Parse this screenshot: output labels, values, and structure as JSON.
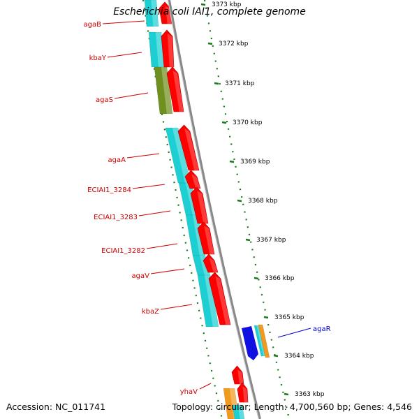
{
  "header": {
    "title": "Escherichia coli IAI1, complete genome"
  },
  "footer": {
    "accession": "Accession: NC_011741",
    "summary": "Topology: circular; Length: 4,700,560 bp; Genes: 4,546"
  },
  "colors": {
    "backbone": "#888888",
    "tick": "#1a7a1a",
    "gene_label": "#cc0000",
    "gene_label_highlight": "#0000cc",
    "arrow_red": "#ff0000",
    "cyan": "#1ccfd2",
    "olive": "#6f8f1f",
    "blue": "#1010e0",
    "orange": "#f29a1e"
  },
  "scale": {
    "unit": "kbp",
    "ticks": [
      {
        "value": 3373,
        "label": "3373 kbp"
      },
      {
        "value": 3372,
        "label": "3372 kbp"
      },
      {
        "value": 3371,
        "label": "3371 kbp"
      },
      {
        "value": 3370,
        "label": "3370 kbp"
      },
      {
        "value": 3369,
        "label": "3369 kbp"
      },
      {
        "value": 3368,
        "label": "3368 kbp"
      },
      {
        "value": 3367,
        "label": "3367 kbp"
      },
      {
        "value": 3366,
        "label": "3366 kbp"
      },
      {
        "value": 3365,
        "label": "3365 kbp"
      },
      {
        "value": 3364,
        "label": "3364 kbp"
      },
      {
        "value": 3363,
        "label": "3363 kbp"
      }
    ]
  },
  "genes": [
    {
      "name": "agaB",
      "highlight": false
    },
    {
      "name": "kbaY",
      "highlight": false
    },
    {
      "name": "agaS",
      "highlight": false
    },
    {
      "name": "agaA",
      "highlight": false
    },
    {
      "name": "ECIAI1_3284",
      "highlight": false
    },
    {
      "name": "ECIAI1_3283",
      "highlight": false
    },
    {
      "name": "ECIAI1_3282",
      "highlight": false
    },
    {
      "name": "agaV",
      "highlight": false
    },
    {
      "name": "kbaZ",
      "highlight": false
    },
    {
      "name": "agaR",
      "highlight": true
    },
    {
      "name": "yhaV",
      "highlight": false
    }
  ]
}
